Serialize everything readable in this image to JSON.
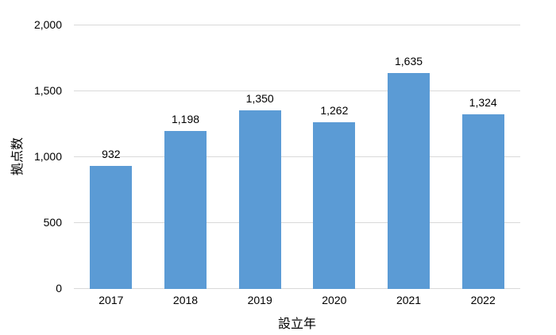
{
  "chart_data": {
    "type": "bar",
    "categories": [
      "2017",
      "2018",
      "2019",
      "2020",
      "2021",
      "2022"
    ],
    "values": [
      932,
      1198,
      1350,
      1262,
      1635,
      1324
    ],
    "value_labels": [
      "932",
      "1,198",
      "1,350",
      "1,262",
      "1,635",
      "1,324"
    ],
    "title": "",
    "xlabel": "設立年",
    "ylabel": "拠点数",
    "ylim": [
      0,
      2000
    ],
    "ytick_step": 500,
    "ytick_labels": [
      "0",
      "500",
      "1,000",
      "1,500",
      "2,000"
    ],
    "grid": true,
    "legend": "none",
    "bar_color": "#5B9BD5",
    "gridline_color": "#D9D9D9",
    "text_color": "#000000"
  }
}
